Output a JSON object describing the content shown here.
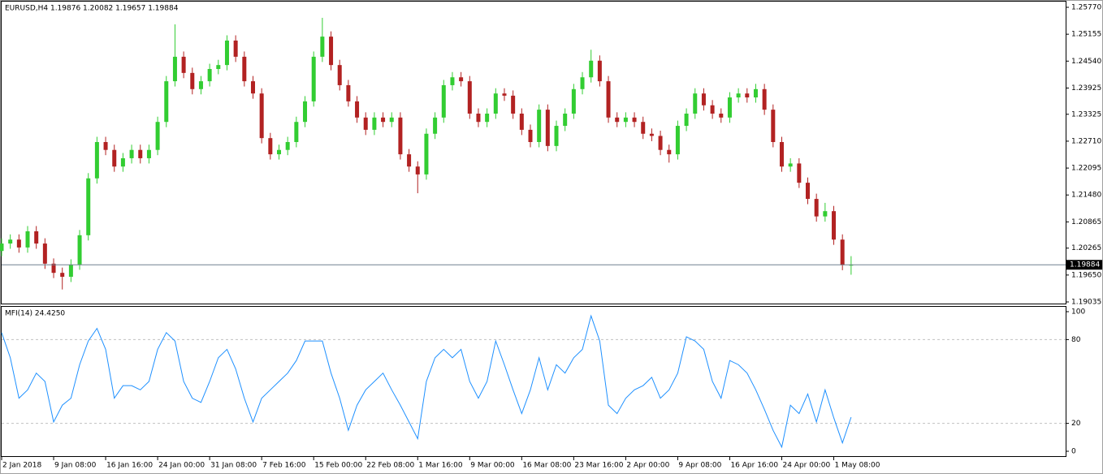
{
  "chart_data": [
    {
      "type": "candlestick",
      "title": "EURUSD,H4  1.19876 1.20082 1.19657 1.19884",
      "up_color": "#32cd32",
      "down_color": "#b22222",
      "x": [
        0,
        4,
        8,
        12,
        16,
        20,
        24,
        28,
        32,
        36,
        40,
        44,
        48,
        52,
        56,
        60,
        64,
        68,
        72,
        76,
        80,
        84,
        88,
        92,
        96,
        100,
        104,
        108,
        112,
        116,
        120,
        124,
        128,
        132,
        136,
        140,
        144,
        148,
        152,
        156,
        160,
        164,
        168,
        172,
        176,
        180,
        184,
        188,
        192,
        196,
        200,
        204,
        208,
        212,
        216,
        220,
        224,
        228,
        232,
        236,
        240,
        244,
        248,
        252,
        256,
        260,
        264,
        268,
        272,
        276,
        280,
        284,
        288,
        292,
        296,
        300,
        304,
        308,
        312,
        316,
        320,
        324,
        328,
        332,
        336,
        340,
        344,
        348,
        352,
        356,
        360,
        364,
        368,
        372,
        376,
        380,
        384,
        388,
        392
      ],
      "open": [
        1.202,
        1.2037,
        1.2046,
        1.2028,
        1.2065,
        1.2037,
        1.1991,
        1.197,
        1.1961,
        1.1989,
        1.2056,
        1.2186,
        1.2269,
        1.2251,
        1.2213,
        1.2232,
        1.2251,
        1.2232,
        1.2251,
        1.2315,
        1.2408,
        1.2464,
        1.2427,
        1.239,
        1.2408,
        1.2436,
        1.2445,
        1.2501,
        1.2464,
        1.2408,
        1.238,
        1.2278,
        1.2241,
        1.2251,
        1.2269,
        1.2315,
        1.2362,
        1.2464,
        1.251,
        1.2445,
        1.2399,
        1.2362,
        1.2325,
        1.2297,
        1.2325,
        1.2315,
        1.2325,
        1.2241,
        1.2213,
        1.2195,
        1.2288,
        1.2325,
        1.2399,
        1.2417,
        1.2408,
        1.2334,
        1.2315,
        1.2334,
        1.238,
        1.2375,
        1.2334,
        1.2297,
        1.2269,
        1.2343,
        1.226,
        1.2306,
        1.2334,
        1.239,
        1.2417,
        1.2455,
        1.2408,
        1.2325,
        1.2315,
        1.2325,
        1.2315,
        1.2288,
        1.2283,
        1.2251,
        1.2241,
        1.2306,
        1.2334,
        1.238,
        1.2353,
        1.2334,
        1.2325,
        1.2371,
        1.238,
        1.2371,
        1.239,
        1.2343,
        1.2269,
        1.2213,
        1.222,
        1.2176,
        1.2139,
        1.2099,
        1.2111,
        1.2046,
        1.19876
      ],
      "high": [
        1.2049,
        1.2058,
        1.2058,
        1.2077,
        1.2077,
        1.2049,
        1.2003,
        1.1982,
        1.2001,
        1.2068,
        1.2198,
        1.2281,
        1.2281,
        1.2263,
        1.2244,
        1.2263,
        1.2263,
        1.2263,
        1.2327,
        1.242,
        1.2538,
        1.2476,
        1.2439,
        1.242,
        1.2448,
        1.2457,
        1.2513,
        1.2513,
        1.2476,
        1.242,
        1.2392,
        1.229,
        1.2263,
        1.2281,
        1.2327,
        1.2374,
        1.2476,
        1.2553,
        1.2522,
        1.2457,
        1.2411,
        1.2374,
        1.2337,
        1.2337,
        1.2337,
        1.2337,
        1.2337,
        1.2253,
        1.2225,
        1.23,
        1.2337,
        1.2411,
        1.2429,
        1.2429,
        1.242,
        1.2346,
        1.2346,
        1.2392,
        1.2392,
        1.2387,
        1.2346,
        1.2309,
        1.2355,
        1.2355,
        1.2318,
        1.2346,
        1.2402,
        1.2429,
        1.248,
        1.2467,
        1.242,
        1.2337,
        1.2337,
        1.2337,
        1.2327,
        1.23,
        1.2295,
        1.2263,
        1.2318,
        1.2346,
        1.2392,
        1.2392,
        1.2365,
        1.2346,
        1.2383,
        1.2392,
        1.2392,
        1.2402,
        1.2402,
        1.2355,
        1.2281,
        1.2232,
        1.2232,
        1.2188,
        1.2151,
        1.213,
        1.2123,
        1.2058,
        1.20082
      ],
      "low": [
        1.2008,
        1.2025,
        1.2016,
        1.2016,
        1.2025,
        1.1979,
        1.1958,
        1.1932,
        1.1949,
        1.1977,
        1.2044,
        1.2174,
        1.2239,
        1.2201,
        1.2201,
        1.222,
        1.222,
        1.222,
        1.2239,
        1.2303,
        1.2396,
        1.2415,
        1.2378,
        1.2378,
        1.2396,
        1.2424,
        1.2433,
        1.2452,
        1.2396,
        1.2368,
        1.2266,
        1.2229,
        1.2229,
        1.2239,
        1.2257,
        1.2303,
        1.235,
        1.2452,
        1.2433,
        1.2387,
        1.235,
        1.2313,
        1.2285,
        1.2285,
        1.2303,
        1.2303,
        1.2229,
        1.2201,
        1.2152,
        1.2183,
        1.2276,
        1.2313,
        1.2387,
        1.2396,
        1.2322,
        1.2303,
        1.2303,
        1.2322,
        1.2363,
        1.2322,
        1.2285,
        1.2257,
        1.2257,
        1.2248,
        1.2248,
        1.2294,
        1.2322,
        1.2378,
        1.2405,
        1.2396,
        1.2313,
        1.2303,
        1.2303,
        1.2303,
        1.2276,
        1.2271,
        1.2239,
        1.2222,
        1.2229,
        1.2294,
        1.2322,
        1.2341,
        1.2322,
        1.2313,
        1.2313,
        1.2359,
        1.2359,
        1.2359,
        1.2331,
        1.2257,
        1.2201,
        1.2201,
        1.2164,
        1.2127,
        1.2087,
        1.2087,
        1.2034,
        1.1976,
        1.19657
      ],
      "close": [
        1.2037,
        1.2046,
        1.2028,
        1.2065,
        1.2037,
        1.1991,
        1.197,
        1.1961,
        1.1989,
        1.2056,
        1.2186,
        1.2269,
        1.2251,
        1.2213,
        1.2232,
        1.2251,
        1.2232,
        1.2251,
        1.2315,
        1.2408,
        1.2464,
        1.2427,
        1.239,
        1.2408,
        1.2436,
        1.2445,
        1.2501,
        1.2464,
        1.2408,
        1.238,
        1.2278,
        1.2241,
        1.2251,
        1.2269,
        1.2315,
        1.2362,
        1.2464,
        1.251,
        1.2445,
        1.2399,
        1.2362,
        1.2325,
        1.2297,
        1.2325,
        1.2315,
        1.2325,
        1.2241,
        1.2213,
        1.2195,
        1.2288,
        1.2325,
        1.2399,
        1.2417,
        1.2408,
        1.2334,
        1.2315,
        1.2334,
        1.238,
        1.2375,
        1.2334,
        1.2297,
        1.2269,
        1.2343,
        1.226,
        1.2306,
        1.2334,
        1.239,
        1.2417,
        1.2455,
        1.2408,
        1.2325,
        1.2315,
        1.2325,
        1.2315,
        1.2288,
        1.2283,
        1.2251,
        1.2241,
        1.2306,
        1.2334,
        1.238,
        1.2353,
        1.2334,
        1.2325,
        1.2371,
        1.238,
        1.2371,
        1.239,
        1.2343,
        1.2269,
        1.2213,
        1.222,
        1.2176,
        1.2139,
        1.2099,
        1.2111,
        1.2046,
        1.19876,
        1.19884
      ],
      "xlim": [
        0,
        491
      ],
      "ylim": [
        1.18998,
        1.259
      ],
      "yticks": [
        {
          "value": 1.2577,
          "label": "1.25770"
        },
        {
          "value": 1.25155,
          "label": "1.25155"
        },
        {
          "value": 1.2454,
          "label": "1.24540"
        },
        {
          "value": 1.23925,
          "label": "1.23925"
        },
        {
          "value": 1.23325,
          "label": "1.23325"
        },
        {
          "value": 1.2271,
          "label": "1.22710"
        },
        {
          "value": 1.22095,
          "label": "1.22095"
        },
        {
          "value": 1.2148,
          "label": "1.21480"
        },
        {
          "value": 1.20865,
          "label": "1.20865"
        },
        {
          "value": 1.20265,
          "label": "1.20265"
        },
        {
          "value": 1.1965,
          "label": "1.19650"
        },
        {
          "value": 1.19035,
          "label": "1.19035"
        }
      ],
      "price_line": {
        "value": 1.19884,
        "label": "1.19884"
      }
    },
    {
      "type": "line",
      "title": "MFI(14) 24.4250",
      "color": "#1e90ff",
      "x": [
        0,
        4,
        8,
        12,
        16,
        20,
        24,
        28,
        32,
        36,
        40,
        44,
        48,
        52,
        56,
        60,
        64,
        68,
        72,
        76,
        80,
        84,
        88,
        92,
        96,
        100,
        104,
        108,
        112,
        116,
        120,
        124,
        128,
        132,
        136,
        140,
        144,
        148,
        152,
        156,
        160,
        164,
        168,
        172,
        176,
        180,
        184,
        188,
        192,
        196,
        200,
        204,
        208,
        212,
        216,
        220,
        224,
        228,
        232,
        236,
        240,
        244,
        248,
        252,
        256,
        260,
        264,
        268,
        272,
        276,
        280,
        284,
        288,
        292,
        296,
        300,
        304,
        308,
        312,
        316,
        320,
        324,
        328,
        332,
        336,
        340,
        344,
        348,
        352,
        356,
        360,
        364,
        368,
        372,
        376,
        380,
        384,
        388,
        392
      ],
      "values": [
        85,
        67,
        38,
        44,
        56,
        50,
        21,
        33,
        38,
        62,
        79,
        88,
        73,
        38,
        47,
        47,
        44,
        50,
        73,
        85,
        79,
        50,
        38,
        35,
        50,
        67,
        73,
        59,
        38,
        21,
        38,
        44,
        50,
        56,
        65,
        79,
        79,
        79,
        56,
        38,
        15,
        33,
        44,
        50,
        56,
        44,
        33,
        21,
        9,
        50,
        67,
        73,
        67,
        73,
        50,
        38,
        50,
        79,
        62,
        44,
        27,
        44,
        67,
        44,
        62,
        56,
        67,
        73,
        97,
        79,
        33,
        27,
        38,
        44,
        47,
        53,
        38,
        44,
        56,
        82,
        79,
        73,
        50,
        38,
        65,
        62,
        56,
        44,
        30,
        15,
        3,
        33,
        27,
        41,
        21,
        44,
        24,
        6,
        24.425
      ],
      "xlim": [
        0,
        491
      ],
      "ylim": [
        -4.07,
        104.07
      ],
      "yticks": [
        100,
        80,
        20,
        0
      ],
      "levels": [
        80,
        20
      ],
      "xticks": [
        {
          "value": 0,
          "label": "2 Jan 2018"
        },
        {
          "value": 24,
          "label": "9 Jan 08:00"
        },
        {
          "value": 48,
          "label": "16 Jan 16:00"
        },
        {
          "value": 72,
          "label": "24 Jan 00:00"
        },
        {
          "value": 96,
          "label": "31 Jan 08:00"
        },
        {
          "value": 120,
          "label": "7 Feb 16:00"
        },
        {
          "value": 144,
          "label": "15 Feb 00:00"
        },
        {
          "value": 168,
          "label": "22 Feb 08:00"
        },
        {
          "value": 192,
          "label": "1 Mar 16:00"
        },
        {
          "value": 216,
          "label": "9 Mar 00:00"
        },
        {
          "value": 240,
          "label": "16 Mar 08:00"
        },
        {
          "value": 264,
          "label": "23 Mar 16:00"
        },
        {
          "value": 288,
          "label": "2 Apr 00:00"
        },
        {
          "value": 312,
          "label": "9 Apr 08:00"
        },
        {
          "value": 336,
          "label": "16 Apr 16:00"
        },
        {
          "value": 360,
          "label": "24 Apr 00:00"
        },
        {
          "value": 384,
          "label": "1 May 08:00"
        }
      ]
    }
  ]
}
